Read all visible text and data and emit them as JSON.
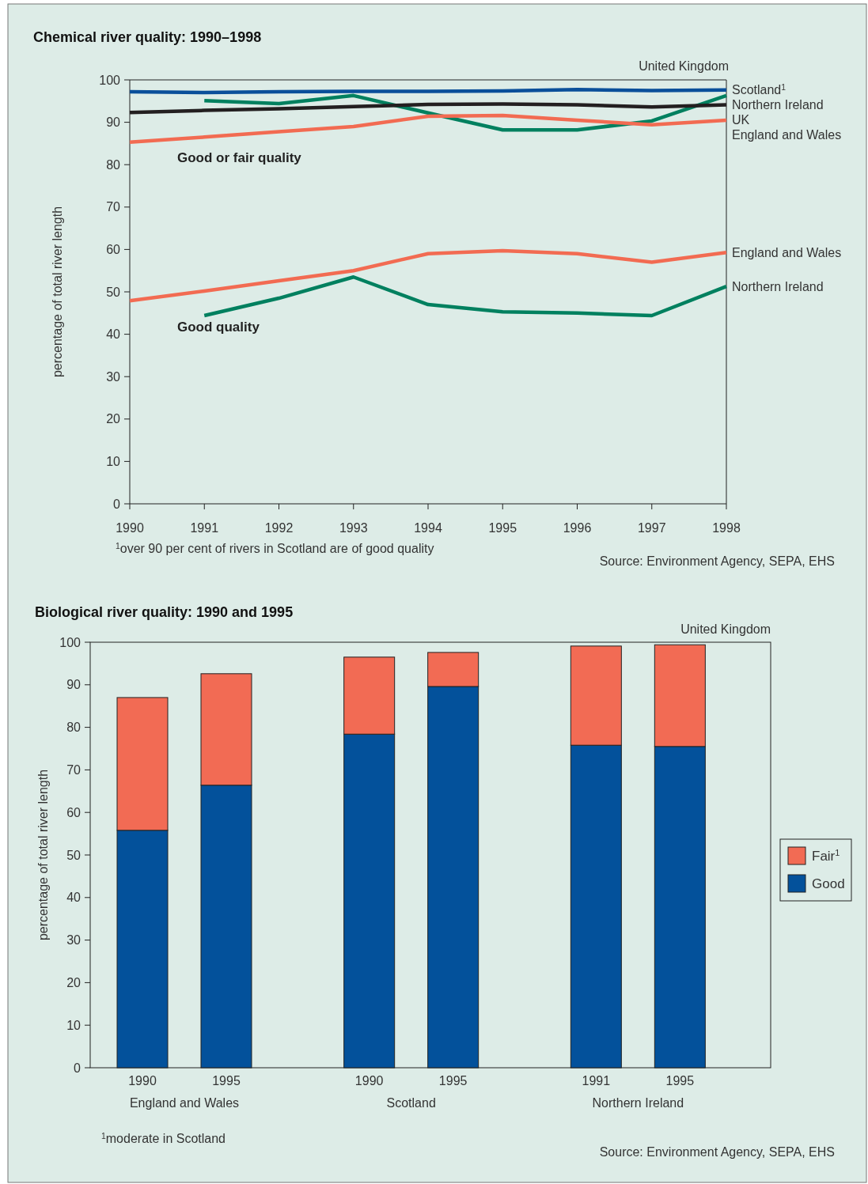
{
  "chart_data": [
    {
      "type": "line",
      "title": "Chemical river quality: 1990–1998",
      "subtitle": "United Kingdom",
      "ylabel": "percentage of total river length",
      "x": [
        1990,
        1991,
        1992,
        1993,
        1994,
        1995,
        1996,
        1997,
        1998
      ],
      "xlim": [
        1990,
        1998
      ],
      "xticks": [
        1990,
        1991,
        1992,
        1993,
        1994,
        1995,
        1996,
        1997,
        1998
      ],
      "ylim": [
        0,
        100
      ],
      "yticks": [
        0,
        10,
        20,
        30,
        40,
        50,
        60,
        70,
        80,
        90,
        100
      ],
      "grid": false,
      "series": [
        {
          "name": "Scotland$^{1}$",
          "color": "#0a4f9a",
          "values": [
            97.2,
            97.0,
            97.2,
            97.3,
            97.3,
            97.4,
            97.7,
            97.5,
            97.6
          ]
        },
        {
          "name": "Northern Ireland",
          "color": "#00805f",
          "values": [
            null,
            95.1,
            94.4,
            96.3,
            92.2,
            88.2,
            88.2,
            90.3,
            96.3
          ]
        },
        {
          "name": "UK",
          "color": "#231f20",
          "values": [
            92.3,
            92.8,
            93.2,
            93.7,
            94.2,
            94.3,
            94.1,
            93.6,
            94.1
          ]
        },
        {
          "name": "England and Wales",
          "color": "#f26b52",
          "values": [
            85.3,
            86.5,
            87.8,
            89.0,
            91.4,
            91.6,
            90.5,
            89.4,
            90.5
          ]
        },
        {
          "name": "England and Wales",
          "color": "#f26b52",
          "values": [
            47.9,
            50.2,
            52.6,
            55.0,
            59.0,
            59.7,
            59.0,
            57.0,
            59.3
          ]
        },
        {
          "name": "Northern Ireland",
          "color": "#00805f",
          "values": [
            null,
            44.4,
            48.5,
            53.5,
            47.0,
            45.3,
            45.0,
            44.4,
            51.3
          ]
        }
      ],
      "annotations": [
        "Good or fair quality",
        "Good quality",
        "$^{1}$over 90 per cent of rivers in Scotland are of good quality",
        "Source: Environment Agency, SEPA, EHS"
      ]
    },
    {
      "type": "bar",
      "stacked": true,
      "title": "Biological river quality: 1990 and 1995",
      "subtitle": "United Kingdom",
      "ylabel": "percentage of total river length",
      "categories": [
        "1990",
        "1995",
        "1990",
        "1995",
        "1991",
        "1995"
      ],
      "ylim": [
        0,
        100
      ],
      "yticks": [
        0,
        10,
        20,
        30,
        40,
        50,
        60,
        70,
        80,
        90,
        100
      ],
      "grid": false,
      "legend": "right",
      "series": [
        {
          "name": "Good",
          "color": "#03519b",
          "values": [
            55.8,
            66.4,
            78.4,
            89.6,
            75.8,
            75.5
          ]
        },
        {
          "name": "Fair$^{1}$",
          "color": "#f26b54",
          "values": [
            31.2,
            26.2,
            18.1,
            8.0,
            23.3,
            23.9
          ]
        }
      ],
      "annotations": [
        "England and Wales",
        "Scotland",
        "Northern Ireland",
        "$^{1}$moderate in Scotland",
        "Source: Environment Agency, SEPA, EHS"
      ]
    }
  ]
}
